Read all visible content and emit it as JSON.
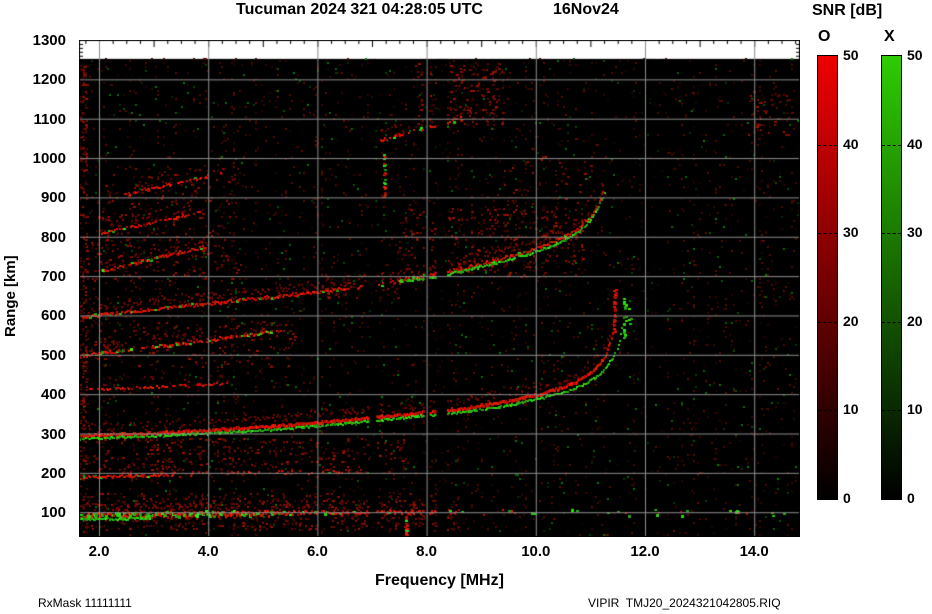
{
  "title": {
    "text": "Tucuman 2024 321 04:28:05 UTC",
    "date": "16Nov24"
  },
  "footer": {
    "left": "RxMask 11111111",
    "right": "VIPIR  TMJ20_2024321042805.RIQ"
  },
  "colorbar": {
    "title": "SNR [dB]",
    "o_label": "O",
    "x_label": "X",
    "o_top_color": "#ee0000",
    "x_top_color": "#2ecc00",
    "bottom_color": "#000000",
    "tick_labels": [
      50,
      40,
      30,
      20,
      10,
      0
    ],
    "dash_ticks": [
      40,
      30,
      20,
      10
    ],
    "min": 0,
    "max": 50
  },
  "chart_data": {
    "type": "heatmap",
    "title": "Tucuman 2024 321 04:28:05 UTC  16Nov24",
    "xlabel": "Frequency [MHz]",
    "ylabel": "Range [km]",
    "xlim": [
      1.634,
      14.84
    ],
    "ylim": [
      37,
      1300
    ],
    "x_ticks": [
      {
        "v": 2,
        "label": "2.0"
      },
      {
        "v": 4,
        "label": "4.0"
      },
      {
        "v": 6,
        "label": "6.0"
      },
      {
        "v": 8,
        "label": "8.0"
      },
      {
        "v": 10,
        "label": "10.0"
      },
      {
        "v": 12,
        "label": "12.0"
      },
      {
        "v": 14,
        "label": "14.0"
      }
    ],
    "y_ticks": [
      {
        "v": 1300,
        "label": "1300"
      },
      {
        "v": 1200,
        "label": "1200"
      },
      {
        "v": 1100,
        "label": "1100"
      },
      {
        "v": 1000,
        "label": "1000"
      },
      {
        "v": 900,
        "label": "900"
      },
      {
        "v": 800,
        "label": "800"
      },
      {
        "v": 700,
        "label": "700"
      },
      {
        "v": 600,
        "label": "600"
      },
      {
        "v": 500,
        "label": "500"
      },
      {
        "v": 400,
        "label": "400"
      },
      {
        "v": 300,
        "label": "300"
      },
      {
        "v": 200,
        "label": "200"
      },
      {
        "v": 100,
        "label": "100"
      }
    ],
    "snr_scale": {
      "min": 0,
      "max": 50,
      "ticks": [
        0,
        10,
        20,
        30,
        40,
        50
      ],
      "modes": [
        "O",
        "X"
      ]
    },
    "data_top_km": 1252,
    "grid": {
      "x_step_mhz": 2,
      "y_step_km": 100,
      "color": "#8c8c8c"
    },
    "noise": {
      "red": 0.028,
      "green": 0.0075
    },
    "gaps": [
      [
        6.95,
        7.08
      ],
      [
        7.96,
        8.05
      ],
      [
        8.18,
        8.37
      ],
      [
        11.9,
        12.18
      ],
      [
        12.28,
        12.4
      ]
    ],
    "diffuse": [
      {
        "f1": 1.634,
        "f2": 1.8,
        "r1": 40,
        "r2": 1245,
        "density": 0.14
      },
      {
        "f1": 1.8,
        "f2": 8.6,
        "r1": 55,
        "r2": 150,
        "density": 0.085
      },
      {
        "f1": 1.9,
        "f2": 7.6,
        "r1": 200,
        "r2": 288,
        "density": 0.055
      },
      {
        "f1": 1.8,
        "f2": 5.6,
        "r1": 470,
        "r2": 585,
        "density": 0.045
      },
      {
        "f1": 1.8,
        "f2": 4.7,
        "r1": 685,
        "r2": 795,
        "density": 0.05
      },
      {
        "f1": 1.9,
        "f2": 4.4,
        "r1": 800,
        "r2": 878,
        "density": 0.038
      },
      {
        "f1": 2.1,
        "f2": 4.7,
        "r1": 885,
        "r2": 975,
        "density": 0.038
      },
      {
        "f1": 6.1,
        "f2": 7.5,
        "r1": 645,
        "r2": 705,
        "density": 0.05
      },
      {
        "f1": 7.5,
        "f2": 10.9,
        "r1": 700,
        "r2": 875,
        "density": 0.055
      },
      {
        "f1": 7.8,
        "f2": 9.4,
        "r1": 1080,
        "r2": 1240,
        "density": 0.09
      },
      {
        "f1": 9.4,
        "f2": 11.0,
        "r1": 860,
        "r2": 1005,
        "density": 0.025
      },
      {
        "f1": 13.9,
        "f2": 14.7,
        "r1": 1060,
        "r2": 1170,
        "density": 0.05
      }
    ],
    "traces": [
      {
        "name": "Es-layer-strong",
        "color": "red",
        "green_prob": 0.4,
        "prob": 1,
        "thick": 3,
        "spread": 2.5,
        "halo": 0.5,
        "points": [
          [
            1.634,
            93
          ],
          [
            3.2,
            96
          ],
          [
            5.3,
            99
          ]
        ]
      },
      {
        "name": "Es-layer-mid",
        "color": "red",
        "green_prob": 0.12,
        "prob": 0.85,
        "thick": 2,
        "spread": 2,
        "halo": 0.35,
        "points": [
          [
            5.3,
            99
          ],
          [
            8.55,
            102
          ]
        ]
      },
      {
        "name": "Es-layer-sparse",
        "color": "red",
        "green_prob": 0.5,
        "prob": 0.1,
        "thick": 2,
        "spread": 3,
        "halo": 0,
        "points": [
          [
            8.55,
            101
          ],
          [
            14.6,
            98
          ]
        ]
      },
      {
        "name": "Es-low-green-line",
        "color": "green",
        "green_prob": 0,
        "prob": 1,
        "thick": 2,
        "spread": 0.8,
        "halo": 0,
        "points": [
          [
            1.634,
            83
          ],
          [
            2.95,
            85
          ]
        ]
      },
      {
        "name": "Es-2hop",
        "color": "red",
        "green_prob": 0.18,
        "prob": 0.8,
        "thick": 2,
        "spread": 1.2,
        "halo": 0.3,
        "points": [
          [
            1.634,
            189
          ],
          [
            3.3,
            196
          ]
        ]
      },
      {
        "name": "Es-2hop-ext",
        "color": "red",
        "green_prob": 0.03,
        "prob": 0.25,
        "thick": 2,
        "spread": 2,
        "halo": 0.1,
        "points": [
          [
            3.3,
            196
          ],
          [
            6.8,
            206
          ]
        ]
      },
      {
        "name": "F-1hop-O",
        "color": "red",
        "green_prob": 0,
        "prob": 1,
        "thick": 3,
        "spread": 1.2,
        "halo": 0.5,
        "points": [
          [
            1.634,
            296
          ],
          [
            2.2,
            299
          ],
          [
            3.0,
            303
          ],
          [
            4.0,
            310
          ],
          [
            5.0,
            318
          ],
          [
            6.0,
            329
          ],
          [
            7.0,
            342
          ],
          [
            7.6,
            350
          ],
          [
            8.1,
            357
          ],
          [
            8.6,
            364
          ],
          [
            9.2,
            377
          ],
          [
            9.7,
            390
          ],
          [
            10.1,
            403
          ],
          [
            10.5,
            419
          ],
          [
            10.8,
            437
          ],
          [
            11.0,
            456
          ],
          [
            11.15,
            476
          ],
          [
            11.28,
            502
          ],
          [
            11.37,
            535
          ],
          [
            11.43,
            580
          ],
          [
            11.47,
            635
          ],
          [
            11.49,
            665
          ]
        ]
      },
      {
        "name": "F-1hop-X",
        "color": "green",
        "green_prob": 0,
        "prob": 0.92,
        "thick": 2,
        "spread": 1,
        "halo": 0,
        "points": [
          [
            1.634,
            287
          ],
          [
            2.3,
            291
          ],
          [
            3.1,
            295
          ],
          [
            4.1,
            302
          ],
          [
            5.1,
            310
          ],
          [
            6.1,
            321
          ],
          [
            7.1,
            334
          ],
          [
            7.7,
            342
          ],
          [
            8.2,
            349
          ],
          [
            8.7,
            356
          ],
          [
            9.3,
            368
          ],
          [
            9.8,
            381
          ],
          [
            10.2,
            394
          ],
          [
            10.6,
            409
          ],
          [
            10.9,
            427
          ],
          [
            11.1,
            445
          ],
          [
            11.3,
            470
          ],
          [
            11.42,
            495
          ],
          [
            11.52,
            528
          ],
          [
            11.58,
            570
          ],
          [
            11.62,
            615
          ],
          [
            11.64,
            645
          ]
        ]
      },
      {
        "name": "F-2hop-O",
        "color": "red",
        "green_prob": 0.08,
        "prob": 0.9,
        "thick": 2,
        "spread": 1.6,
        "halo": 0.6,
        "fade": [
          [
            6.55,
            7.45,
            0.3
          ]
        ],
        "points": [
          [
            1.634,
            596
          ],
          [
            2.2,
            606
          ],
          [
            3.0,
            617
          ],
          [
            4.0,
            631
          ],
          [
            5.0,
            646
          ],
          [
            6.0,
            661
          ],
          [
            6.6,
            670
          ],
          [
            7.2,
            681
          ],
          [
            7.6,
            692
          ],
          [
            8.2,
            706
          ],
          [
            8.8,
            725
          ],
          [
            9.4,
            746
          ],
          [
            10.0,
            770
          ],
          [
            10.4,
            792
          ],
          [
            10.8,
            824
          ],
          [
            11.0,
            853
          ],
          [
            11.15,
            888
          ],
          [
            11.25,
            920
          ]
        ]
      },
      {
        "name": "F-2hop-X",
        "color": "green",
        "green_prob": 0,
        "prob": 0.9,
        "thick": 2,
        "spread": 1,
        "halo": 0,
        "points": [
          [
            7.5,
            686
          ],
          [
            8.2,
            700
          ],
          [
            8.8,
            718
          ],
          [
            9.4,
            738
          ],
          [
            10.0,
            762
          ],
          [
            10.4,
            784
          ],
          [
            10.8,
            815
          ],
          [
            11.0,
            844
          ],
          [
            11.15,
            878
          ],
          [
            11.28,
            918
          ]
        ]
      },
      {
        "name": "mixed-500km",
        "color": "red",
        "green_prob": 0.18,
        "prob": 0.75,
        "thick": 2,
        "spread": 1.4,
        "halo": 0.4,
        "points": [
          [
            1.634,
            497
          ],
          [
            2.3,
            509
          ],
          [
            3.2,
            524
          ],
          [
            4.2,
            542
          ],
          [
            5.35,
            563
          ]
        ]
      },
      {
        "name": "weak-420km",
        "color": "red",
        "green_prob": 0,
        "prob": 0.5,
        "thick": 2,
        "spread": 1.2,
        "halo": 0.2,
        "points": [
          [
            1.8,
            412
          ],
          [
            4.35,
            427
          ]
        ]
      },
      {
        "name": "multipath-720km",
        "color": "red",
        "green_prob": 0.12,
        "prob": 0.7,
        "thick": 2,
        "spread": 1.4,
        "halo": 0.4,
        "points": [
          [
            2.05,
            714
          ],
          [
            3.95,
            776
          ]
        ]
      },
      {
        "name": "multipath-820km",
        "color": "red",
        "green_prob": 0.05,
        "prob": 0.55,
        "thick": 2,
        "spread": 1.3,
        "halo": 0.3,
        "points": [
          [
            2.05,
            810
          ],
          [
            3.85,
            863
          ]
        ]
      },
      {
        "name": "multipath-910km",
        "color": "red",
        "green_prob": 0.06,
        "prob": 0.6,
        "thick": 2,
        "spread": 1.3,
        "halo": 0.3,
        "points": [
          [
            2.45,
            908
          ],
          [
            4.25,
            963
          ]
        ]
      },
      {
        "name": "F-3hop",
        "color": "red",
        "green_prob": 0.15,
        "prob": 0.55,
        "thick": 2,
        "spread": 1.6,
        "halo": 0.4,
        "points": [
          [
            6.95,
            1040
          ],
          [
            8.65,
            1102
          ]
        ]
      },
      {
        "name": "streak-7.2MHz",
        "vertical": true,
        "f": 7.22,
        "r1": 903,
        "r2": 1012,
        "color": "red",
        "green_prob": 0.3,
        "prob": 0.55
      },
      {
        "name": "streak-7.6MHz",
        "vertical": true,
        "f": 7.62,
        "r1": 37,
        "r2": 93,
        "color": "red",
        "green_prob": 0.05,
        "prob": 0.7
      },
      {
        "name": "O-asymptote-spike",
        "vertical": true,
        "f": 11.44,
        "r1": 558,
        "r2": 668,
        "color": "red",
        "green_prob": 0,
        "prob": 0.6
      },
      {
        "name": "X-asymptote-spike-1",
        "vertical": true,
        "f": 11.62,
        "r1": 545,
        "r2": 648,
        "color": "green",
        "green_prob": 0,
        "prob": 0.45
      },
      {
        "name": "X-asymptote-spike-2",
        "vertical": true,
        "f": 11.71,
        "r1": 560,
        "r2": 635,
        "color": "green",
        "green_prob": 0,
        "prob": 0.3
      }
    ]
  }
}
